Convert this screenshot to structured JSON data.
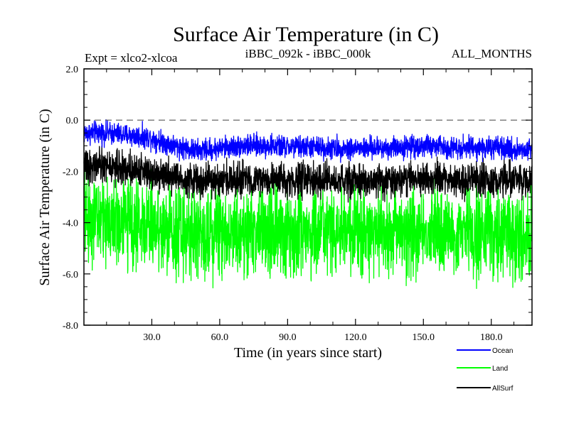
{
  "chart_data": {
    "type": "line",
    "title": "Surface Air Temperature (in C)",
    "subtitle_left": "Expt = xlco2-xlcoa",
    "subtitle_center": "iBBC_092k - iBBC_000k",
    "subtitle_right": "ALL_MONTHS",
    "xlabel": "Time (in years since start)",
    "ylabel": "Surface Air Temperature (in C)",
    "xlim": [
      0,
      198
    ],
    "ylim": [
      -8.0,
      2.0
    ],
    "x_ticks": [
      30,
      60,
      90,
      120,
      150,
      180
    ],
    "x_tick_labels": [
      "30.0",
      "60.0",
      "90.0",
      "120.0",
      "150.0",
      "180.0"
    ],
    "y_ticks": [
      -8,
      -6,
      -4,
      -2,
      0,
      2
    ],
    "y_tick_labels": [
      "-8.0",
      "-6.0",
      "-4.0",
      "-2.0",
      "0.0",
      "2.0"
    ],
    "reference_line": 0.0,
    "samples_per_year": 12,
    "series": [
      {
        "name": "Ocean",
        "color": "#0000ff",
        "mean_by_decade": [
          -0.5,
          -0.5,
          -0.6,
          -0.7,
          -1.0,
          -1.2,
          -1.1,
          -1.0,
          -1.0,
          -1.05,
          -1.05,
          -1.1,
          -1.1,
          -1.1,
          -1.05,
          -1.0,
          -1.05,
          -1.05,
          -1.1,
          -1.15
        ],
        "amplitude": 0.3
      },
      {
        "name": "Land",
        "color": "#00ff00",
        "mean_by_decade": [
          -3.8,
          -3.9,
          -4.0,
          -4.1,
          -4.3,
          -4.4,
          -4.3,
          -4.3,
          -4.4,
          -4.4,
          -4.35,
          -4.4,
          -4.4,
          -4.4,
          -4.3,
          -4.3,
          -4.35,
          -4.4,
          -4.35,
          -4.4
        ],
        "amplitude": 1.2
      },
      {
        "name": "AllSurf",
        "color": "#000000",
        "mean_by_decade": [
          -1.8,
          -1.8,
          -1.9,
          -2.0,
          -2.2,
          -2.4,
          -2.35,
          -2.3,
          -2.35,
          -2.35,
          -2.35,
          -2.4,
          -2.4,
          -2.4,
          -2.3,
          -2.3,
          -2.3,
          -2.35,
          -2.35,
          -2.35
        ],
        "amplitude": 0.45
      }
    ]
  }
}
